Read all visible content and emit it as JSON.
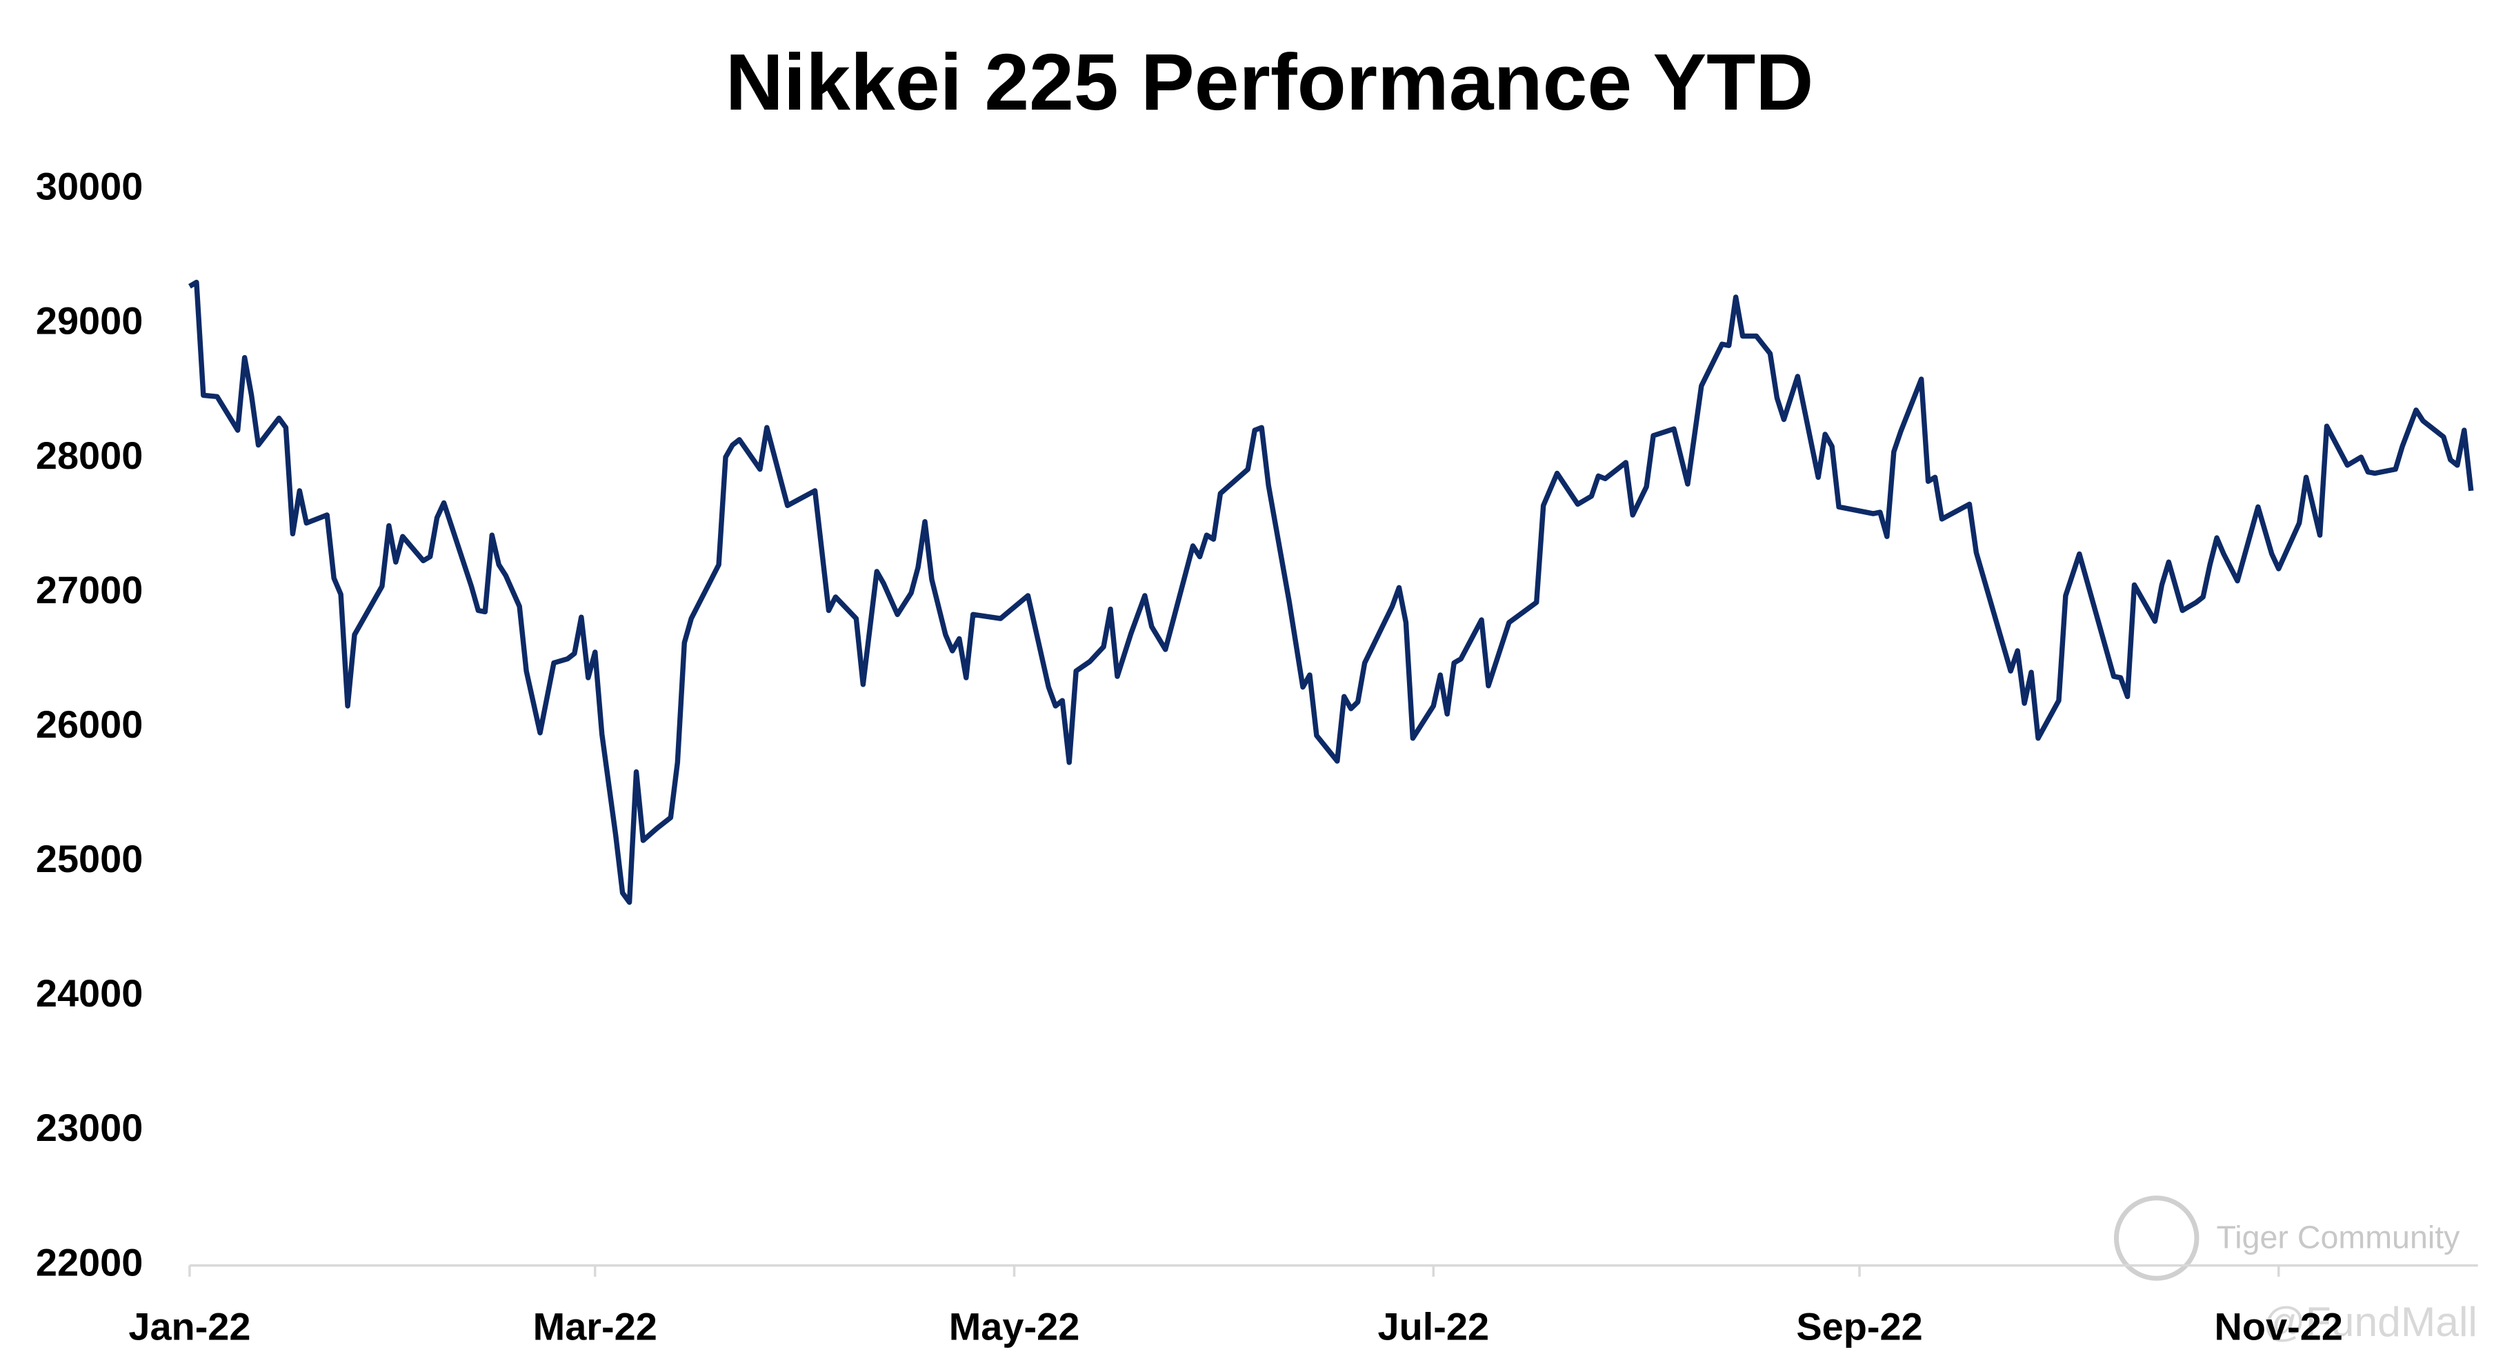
{
  "chart_data": {
    "type": "line",
    "title": "Nikkei 225 Performance YTD",
    "watermark": [
      "Tiger Community",
      "@FundMall"
    ],
    "xlim": [
      0,
      333
    ],
    "xticks": [
      {
        "value": 0,
        "label": "Jan-22"
      },
      {
        "value": 59,
        "label": "Mar-22"
      },
      {
        "value": 120,
        "label": "May-22"
      },
      {
        "value": 181,
        "label": "Jul-22"
      },
      {
        "value": 243,
        "label": "Sep-22"
      },
      {
        "value": 304,
        "label": "Nov-22"
      }
    ],
    "ylim": [
      22000,
      30000
    ],
    "yticks": [
      22000,
      23000,
      24000,
      25000,
      26000,
      27000,
      28000,
      29000,
      30000
    ],
    "grid": false,
    "x": [
      0,
      1,
      2,
      4,
      7,
      8,
      9,
      10,
      13,
      14,
      15,
      16,
      17,
      20,
      21,
      22,
      23,
      24,
      28,
      29,
      30,
      31,
      34,
      35,
      36,
      37,
      41,
      42,
      43,
      44,
      45,
      46,
      48,
      49,
      51,
      53,
      55,
      56,
      57,
      58,
      59,
      60,
      62,
      63,
      64,
      65,
      66,
      68,
      70,
      71,
      72,
      73,
      77,
      78,
      79,
      80,
      83,
      84,
      87,
      91,
      93,
      94,
      97,
      98,
      100,
      101,
      103,
      105,
      106,
      107,
      108,
      110,
      111,
      112,
      113,
      114,
      118,
      122,
      125,
      126,
      127,
      128,
      129,
      131,
      133,
      134,
      135,
      137,
      139,
      140,
      142,
      146,
      147,
      148,
      149,
      150,
      154,
      155,
      156,
      157,
      160,
      162,
      163,
      164,
      167,
      168,
      169,
      170,
      171,
      175,
      176,
      177,
      178,
      181,
      182,
      183,
      184,
      185,
      188,
      189,
      192,
      196,
      197,
      199,
      202,
      204,
      205,
      206,
      209,
      210,
      212,
      213,
      216,
      218,
      220,
      223,
      224,
      225,
      226,
      228,
      230,
      231,
      232,
      234,
      237,
      238,
      239,
      240,
      245,
      246,
      247,
      248,
      249,
      252,
      253,
      254,
      255,
      259,
      260,
      265,
      266,
      267,
      268,
      269,
      272,
      273,
      275,
      280,
      281,
      282,
      283,
      286,
      287,
      288,
      290,
      292,
      293,
      294,
      295,
      296,
      298,
      301,
      303,
      304,
      307,
      308,
      310,
      311,
      314,
      316,
      317,
      318,
      321,
      322,
      324,
      325,
      328,
      329,
      330,
      331,
      332
    ],
    "series": [
      {
        "name": "Nikkei 225",
        "color": "#0d2a66",
        "values": [
          29280,
          29310,
          28470,
          28460,
          28210,
          28750,
          28470,
          28100,
          28300,
          28230,
          27440,
          27760,
          27520,
          27580,
          27110,
          26990,
          26160,
          26690,
          27050,
          27500,
          27230,
          27420,
          27240,
          27270,
          27560,
          27670,
          27050,
          26870,
          26860,
          27430,
          27210,
          27130,
          26900,
          26420,
          25960,
          26480,
          26510,
          26550,
          26820,
          26370,
          26560,
          25950,
          25200,
          24770,
          24700,
          25670,
          25160,
          25250,
          25330,
          25740,
          26630,
          26810,
          27210,
          28010,
          28100,
          28140,
          27920,
          28230,
          27650,
          27760,
          26870,
          26970,
          26810,
          26320,
          27160,
          27070,
          26840,
          27000,
          27190,
          27530,
          27100,
          26690,
          26570,
          26660,
          26370,
          26840,
          26810,
          26980,
          26300,
          26160,
          26200,
          25740,
          26420,
          26490,
          26600,
          26880,
          26380,
          26700,
          26980,
          26750,
          26580,
          27350,
          27270,
          27430,
          27400,
          27740,
          27920,
          28210,
          28230,
          27800,
          26940,
          26300,
          26390,
          25940,
          25750,
          26230,
          26140,
          26190,
          26480,
          26900,
          27040,
          26780,
          25920,
          26160,
          26390,
          26100,
          26480,
          26510,
          26800,
          26310,
          26780,
          26930,
          27650,
          27890,
          27660,
          27720,
          27870,
          27850,
          27970,
          27580,
          27790,
          28170,
          28220,
          27810,
          28540,
          28850,
          28840,
          29200,
          28910,
          28910,
          28780,
          28450,
          28290,
          28610,
          27860,
          28180,
          28090,
          27640,
          27590,
          27600,
          27420,
          28050,
          28200,
          28590,
          27830,
          27860,
          27550,
          27660,
          27300,
          26420,
          26570,
          26180,
          26410,
          25920,
          26200,
          26980,
          27290,
          26380,
          26370,
          26230,
          27060,
          26790,
          27060,
          27230,
          26870,
          26930,
          26970,
          27210,
          27410,
          27290,
          27090,
          27640,
          27290,
          27180,
          27520,
          27860,
          27430,
          28240,
          27950,
          28010,
          27900,
          27890,
          27920,
          28090,
          28360,
          28280,
          28160,
          27990,
          27950,
          28210,
          27760
        ]
      }
    ]
  }
}
